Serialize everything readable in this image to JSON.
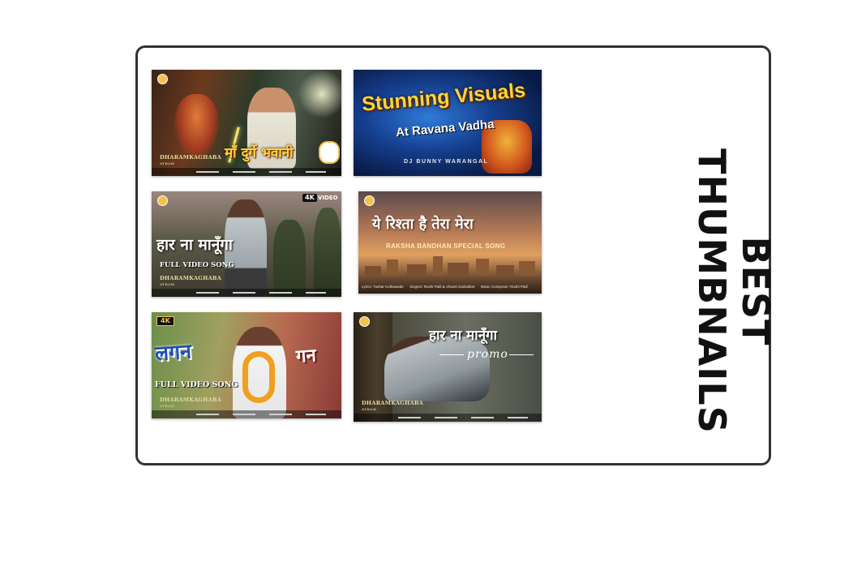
{
  "heading": {
    "line1": "BEST",
    "line2": "THUMBNAILS"
  },
  "thumbnails": [
    {
      "title": "माँ दुर्गे भवानी",
      "brand": "DHARAMKAGHABA",
      "brand2": "ATRAM"
    },
    {
      "title": "Stunning Visuals",
      "subtitle": "At Ravana Vadha",
      "credit": "DJ BUNNY WARANGAL"
    },
    {
      "title": "हार ना मानूँगा",
      "subtitle": "FULL VIDEO SONG",
      "badge": "4K",
      "badge_text": "VIDEO",
      "brand": "DHARAMKAGHABA",
      "brand2": "ATRAM"
    },
    {
      "title": "ये रिश्ता है तेरा मेरा",
      "subtitle": "RAKSHA BANDHAN SPECIAL SONG",
      "lyrics_label": "Lyrics:",
      "lyrics": "Tushar Kothawade",
      "singers_label": "Singers:",
      "singers": "Rushi Patil & Vinanti Gadvaikar",
      "music_label": "Music Composer:",
      "music": "Rushi Patil"
    },
    {
      "title1": "लगन",
      "title2": "गन",
      "subtitle": "FULL VIDEO SONG",
      "badge": "4K",
      "brand": "DHARAMKAGHABA",
      "brand2": "ATRAM"
    },
    {
      "title": "हार ना मानूँगा",
      "subtitle": "promo",
      "brand": "DHARAMKAGHABA",
      "brand2": "ATRAM"
    }
  ],
  "colors": {
    "border": "#333333",
    "heading": "#111111",
    "gold": "#f2c14e",
    "yellow": "#ffd43b",
    "blue": "#1d4fb8"
  }
}
